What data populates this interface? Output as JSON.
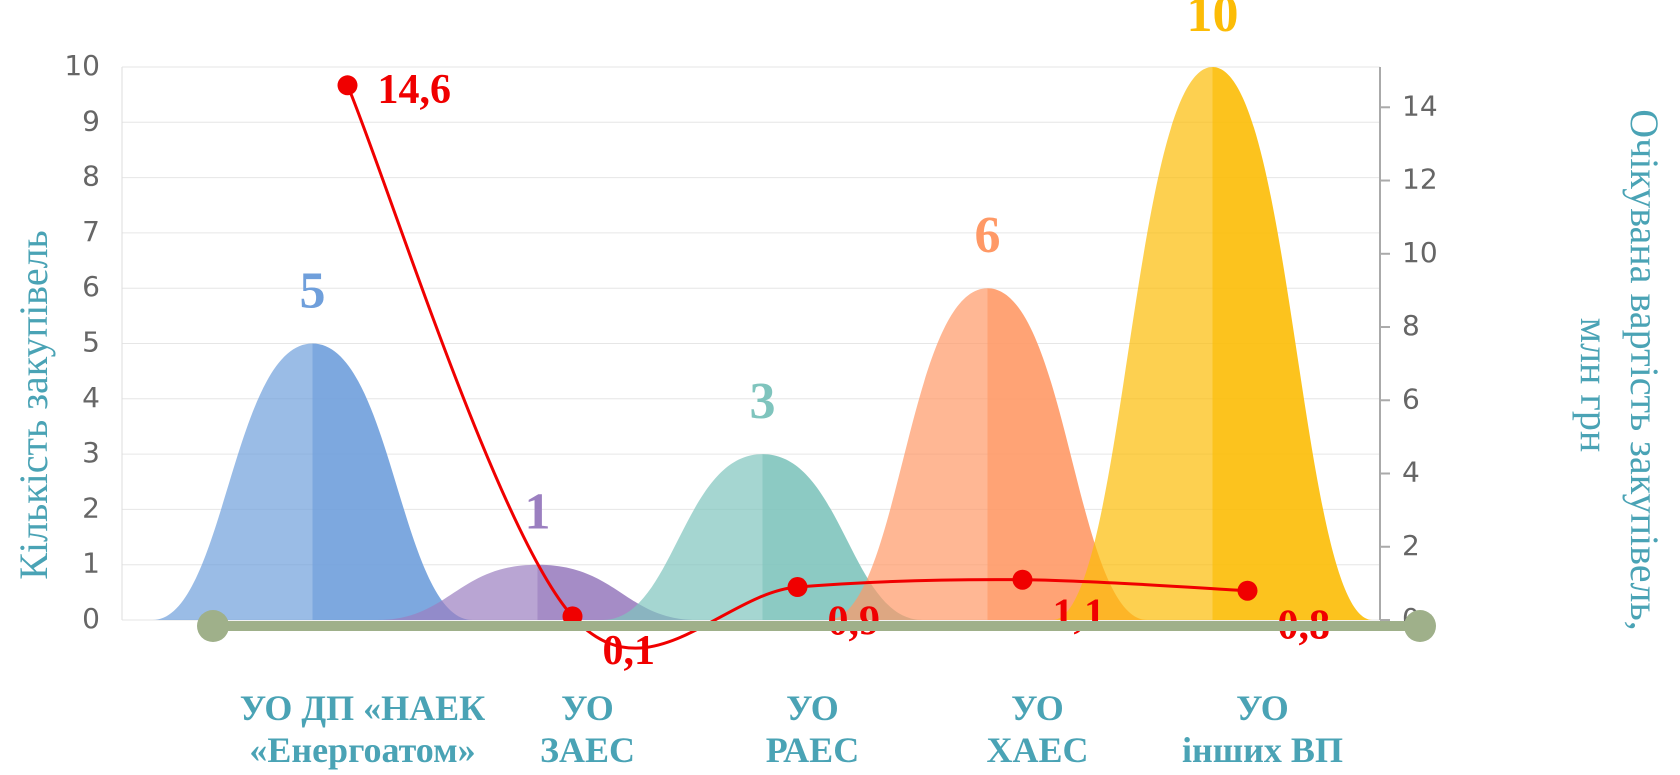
{
  "chart_data": {
    "type": "bar-line",
    "categories": [
      "УО ДП «НАЕК\n«Енергоатом»",
      "УО\nЗАЕС",
      "УО\nРАЕС",
      "УО\nХАЕС",
      "УО\nінших ВП"
    ],
    "ylabel": "Кількість закупівель",
    "y2label": [
      "Очікувана вартість закупівель,",
      "млн грн"
    ],
    "ylim": [
      0,
      10
    ],
    "yticks": [
      0,
      1,
      2,
      3,
      4,
      5,
      6,
      7,
      8,
      9,
      10
    ],
    "y2lim": [
      0,
      15.1
    ],
    "y2ticks": [
      0,
      2,
      4,
      6,
      8,
      10,
      12,
      14
    ],
    "grid": true,
    "series": [
      {
        "name": "Кількість закупівель",
        "type": "bar",
        "colors": [
          "#6f9fdb",
          "#9b7fc0",
          "#7fc4bd",
          "#ff9966",
          "#fcbc06"
        ],
        "values": [
          5,
          1,
          3,
          6,
          10
        ]
      },
      {
        "name": "Очікувана вартість закупівель, млн грн",
        "type": "line",
        "axis": "y2",
        "color": "#f00000",
        "values": [
          14.6,
          0.1,
          0.9,
          1.1,
          0.8
        ],
        "value_labels": [
          "14,6",
          "0,1",
          "0,9",
          "1,1",
          "0,8"
        ]
      }
    ]
  }
}
